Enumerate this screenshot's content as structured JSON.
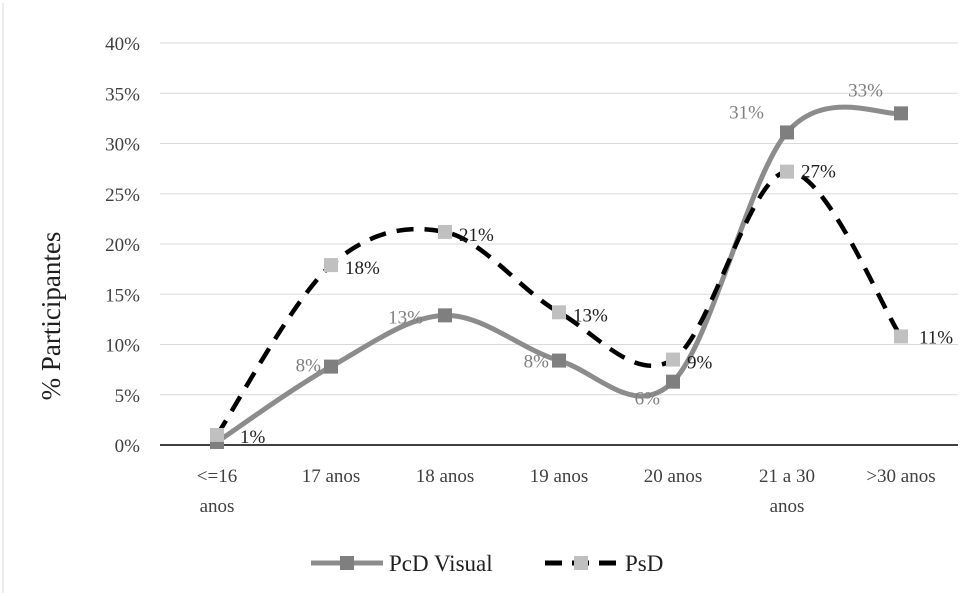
{
  "chart_data": {
    "type": "line",
    "ylabel": "% Participantes",
    "ylim": [
      0,
      40
    ],
    "ytick_step": 5,
    "ytick_labels": [
      "0%",
      "5%",
      "10%",
      "15%",
      "20%",
      "25%",
      "30%",
      "35%",
      "40%"
    ],
    "grid": "horizontal",
    "legend_position": "bottom",
    "categories": [
      [
        "<=16",
        "anos"
      ],
      [
        "17 anos"
      ],
      [
        "18 anos"
      ],
      [
        "19 anos"
      ],
      [
        "20 anos"
      ],
      [
        "21 a 30",
        "anos"
      ],
      [
        ">30 anos"
      ]
    ],
    "series": [
      {
        "name": "PcD Visual",
        "values": [
          0.3,
          7.8,
          12.9,
          8.4,
          6.3,
          31.1,
          33.0
        ],
        "labels": [
          "",
          "8%",
          "13%",
          "8%",
          "6%",
          "31%",
          "33%"
        ],
        "color": "#8c8c8c",
        "marker_color": "#7f7f7f",
        "line_style": "solid"
      },
      {
        "name": "PsD",
        "values": [
          1.0,
          17.9,
          21.2,
          13.2,
          8.5,
          27.2,
          10.8
        ],
        "labels": [
          "1%",
          "18%",
          "21%",
          "13%",
          "9%",
          "27%",
          "11%"
        ],
        "color": "#000000",
        "marker_color": "#c0c0c0",
        "line_style": "dashed"
      }
    ]
  }
}
